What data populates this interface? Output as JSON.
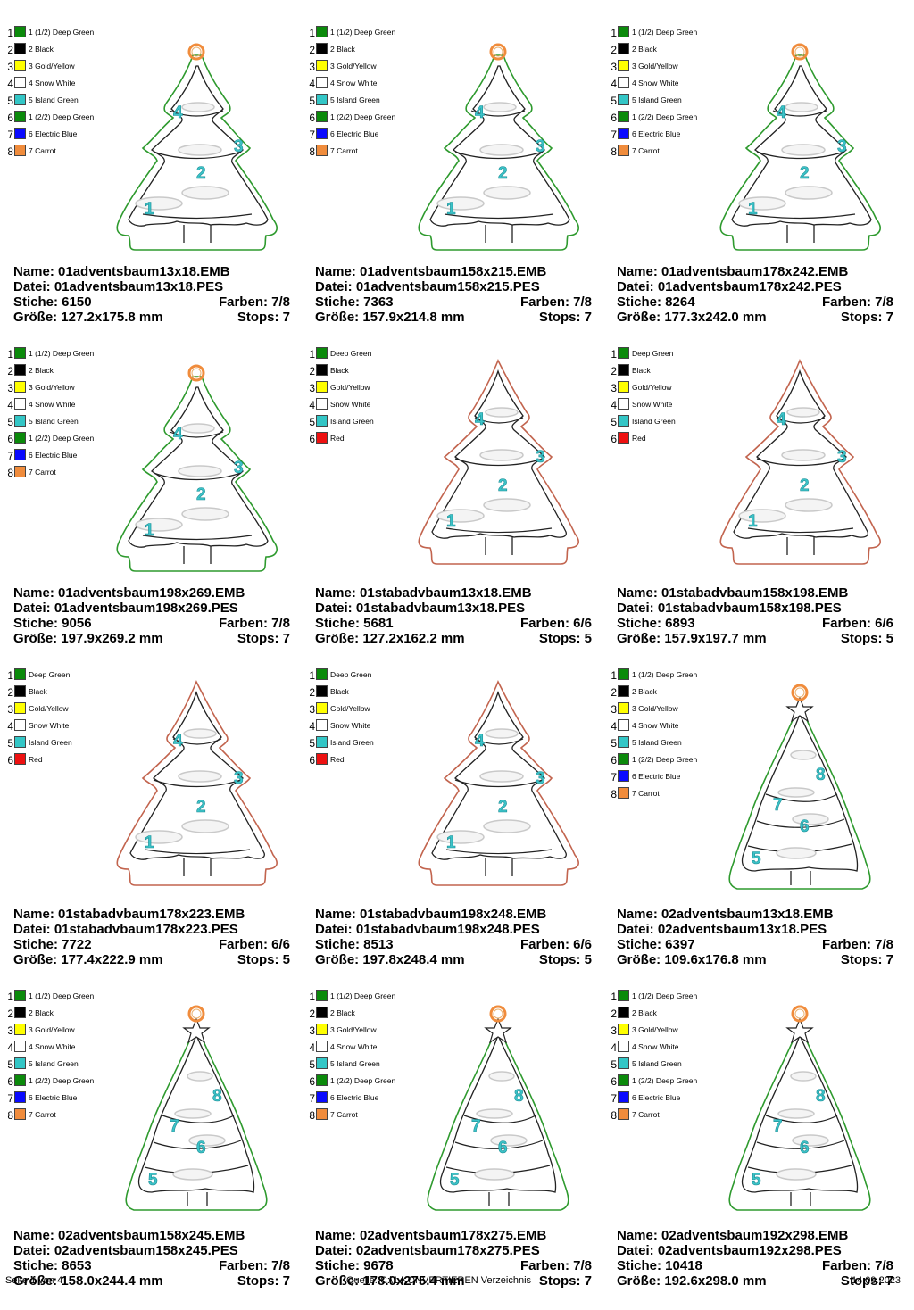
{
  "palettes": {
    "A": [
      {
        "num": "1",
        "label": "1 (1/2) Deep Green",
        "color": "#0b8a0b"
      },
      {
        "num": "2",
        "label": "2 Black",
        "color": "#000000"
      },
      {
        "num": "3",
        "label": "3 Gold/Yellow",
        "color": "#ffff00"
      },
      {
        "num": "4",
        "label": "4 Snow White",
        "color": "#ffffff"
      },
      {
        "num": "5",
        "label": "5 Island Green",
        "color": "#33c6c6"
      },
      {
        "num": "6",
        "label": "1 (2/2) Deep Green",
        "color": "#0b8a0b"
      },
      {
        "num": "7",
        "label": "6 Electric Blue",
        "color": "#0a0aff"
      },
      {
        "num": "8",
        "label": "7 Carrot",
        "color": "#f08c3c"
      }
    ],
    "B": [
      {
        "num": "1",
        "label": "Deep Green",
        "color": "#0b8a0b"
      },
      {
        "num": "2",
        "label": "Black",
        "color": "#000000"
      },
      {
        "num": "3",
        "label": "Gold/Yellow",
        "color": "#ffff00"
      },
      {
        "num": "4",
        "label": "Snow White",
        "color": "#ffffff"
      },
      {
        "num": "5",
        "label": "Island Green",
        "color": "#33c6c6"
      },
      {
        "num": "6",
        "label": "Red",
        "color": "#ee1111"
      }
    ]
  },
  "labels": {
    "name": "Name:",
    "datei": "Datei:",
    "stiche": "Stiche:",
    "farben": "Farben:",
    "groesse": "Größe:",
    "stops": "Stops:"
  },
  "items": [
    {
      "palette": "A",
      "tree": "adv1",
      "name": "01adventsbaum13x18.EMB",
      "file": "01adventsbaum13x18.PES",
      "stitches": "6150",
      "colors": "7/8",
      "size": "127.2x175.8 mm",
      "stops": "7"
    },
    {
      "palette": "A",
      "tree": "adv1",
      "name": "01adventsbaum158x215.EMB",
      "file": "01adventsbaum158x215.PES",
      "stitches": "7363",
      "colors": "7/8",
      "size": "157.9x214.8 mm",
      "stops": "7"
    },
    {
      "palette": "A",
      "tree": "adv1",
      "name": "01adventsbaum178x242.EMB",
      "file": "01adventsbaum178x242.PES",
      "stitches": "8264",
      "colors": "7/8",
      "size": "177.3x242.0 mm",
      "stops": "7"
    },
    {
      "palette": "A",
      "tree": "adv1",
      "name": "01adventsbaum198x269.EMB",
      "file": "01adventsbaum198x269.PES",
      "stitches": "9056",
      "colors": "7/8",
      "size": "197.9x269.2 mm",
      "stops": "7"
    },
    {
      "palette": "B",
      "tree": "stab",
      "name": "01stabadvbaum13x18.EMB",
      "file": "01stabadvbaum13x18.PES",
      "stitches": "5681",
      "colors": "6/6",
      "size": "127.2x162.2 mm",
      "stops": "5"
    },
    {
      "palette": "B",
      "tree": "stab",
      "name": "01stabadvbaum158x198.EMB",
      "file": "01stabadvbaum158x198.PES",
      "stitches": "6893",
      "colors": "6/6",
      "size": "157.9x197.7 mm",
      "stops": "5"
    },
    {
      "palette": "B",
      "tree": "stab",
      "name": "01stabadvbaum178x223.EMB",
      "file": "01stabadvbaum178x223.PES",
      "stitches": "7722",
      "colors": "6/6",
      "size": "177.4x222.9 mm",
      "stops": "5"
    },
    {
      "palette": "B",
      "tree": "stab",
      "name": "01stabadvbaum198x248.EMB",
      "file": "01stabadvbaum198x248.PES",
      "stitches": "8513",
      "colors": "6/6",
      "size": "197.8x248.4 mm",
      "stops": "5"
    },
    {
      "palette": "A",
      "tree": "adv2",
      "name": "02adventsbaum13x18.EMB",
      "file": "02adventsbaum13x18.PES",
      "stitches": "6397",
      "colors": "7/8",
      "size": "109.6x176.8 mm",
      "stops": "7"
    },
    {
      "palette": "A",
      "tree": "adv2",
      "name": "02adventsbaum158x245.EMB",
      "file": "02adventsbaum158x245.PES",
      "stitches": "8653",
      "colors": "7/8",
      "size": "158.0x244.4 mm",
      "stops": "7"
    },
    {
      "palette": "A",
      "tree": "adv2",
      "name": "02adventsbaum178x275.EMB",
      "file": "02adventsbaum178x275.PES",
      "stitches": "9678",
      "colors": "7/8",
      "size": "178.0x275.4 mm",
      "stops": "7"
    },
    {
      "palette": "A",
      "tree": "adv2",
      "name": "02adventsbaum192x298.EMB",
      "file": "02adventsbaum192x298.PES",
      "stitches": "10418",
      "colors": "7/8",
      "size": "192.6x298.0 mm",
      "stops": "7"
    }
  ],
  "tree_numbers": {
    "adv1": [
      "1",
      "2",
      "3",
      "4"
    ],
    "stab": [
      "1",
      "2",
      "3",
      "4"
    ],
    "adv2": [
      "5",
      "6",
      "7",
      "8"
    ]
  },
  "outline_colors": {
    "adv1": "#2e9a2e",
    "stab": "#c2644e",
    "adv2": "#2e9a2e"
  },
  "number_color": "#3cc3c8",
  "hanger_color": "#f08c3c",
  "footer": {
    "page": "Seite 1 von 4",
    "source": "Quelle: C:\\1 KONVERTIEREN Verzeichnis",
    "date": "14.09.2023"
  }
}
